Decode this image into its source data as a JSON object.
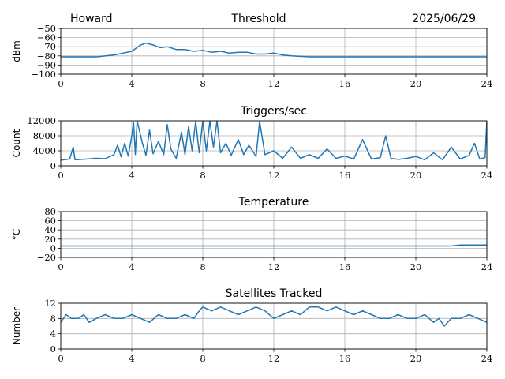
{
  "header": {
    "left": "Howard",
    "center": "Threshold",
    "right": "2025/06/29"
  },
  "colors": {
    "series": "#1f77b4",
    "grid": "#b0b0b0"
  },
  "chart_data": [
    {
      "type": "line",
      "title": "Threshold",
      "ylabel": "dBm",
      "xlim": [
        0,
        24
      ],
      "ylim": [
        -100,
        -50
      ],
      "xticks": [
        0,
        4,
        8,
        12,
        16,
        20,
        24
      ],
      "yticks": [
        -100,
        -90,
        -80,
        -70,
        -60,
        -50
      ],
      "ytick_labels": [
        "−100",
        "−90",
        "−80",
        "−70",
        "−60",
        "−50"
      ],
      "grid": true,
      "x": [
        0,
        1,
        2,
        3,
        3.5,
        4,
        4.5,
        4.8,
        5.2,
        5.6,
        6,
        6.5,
        7,
        7.5,
        8,
        8.5,
        9,
        9.5,
        10,
        10.5,
        11,
        11.5,
        12,
        12.5,
        13,
        14,
        16,
        18,
        20,
        22,
        24
      ],
      "series": [
        {
          "values": [
            -81,
            -81,
            -81,
            -79,
            -77,
            -75,
            -68,
            -66,
            -68,
            -71,
            -70,
            -73,
            -73,
            -75,
            -74,
            -76,
            -75,
            -77,
            -76,
            -76,
            -78,
            -78,
            -77,
            -79,
            -80,
            -81,
            -81,
            -81,
            -81,
            -81,
            -81
          ]
        }
      ]
    },
    {
      "type": "line",
      "title": "Triggers/sec",
      "ylabel": "Count",
      "xlim": [
        0,
        24
      ],
      "ylim": [
        0,
        12000
      ],
      "xticks": [
        0,
        4,
        8,
        12,
        16,
        20,
        24
      ],
      "yticks": [
        0,
        4000,
        8000,
        12000
      ],
      "ytick_labels": [
        "0",
        "4000",
        "8000",
        "12000"
      ],
      "grid": true,
      "x": [
        0,
        0.5,
        0.7,
        0.8,
        1.5,
        2,
        2.5,
        3,
        3.2,
        3.4,
        3.6,
        3.8,
        4,
        4.1,
        4.2,
        4.3,
        4.6,
        4.8,
        5,
        5.2,
        5.5,
        5.8,
        6,
        6.2,
        6.5,
        6.8,
        7,
        7.2,
        7.4,
        7.6,
        7.8,
        8,
        8.2,
        8.4,
        8.6,
        8.8,
        9,
        9.3,
        9.6,
        10,
        10.3,
        10.6,
        11,
        11.2,
        11.5,
        12,
        12.5,
        13,
        13.5,
        14,
        14.5,
        15,
        15.5,
        16,
        16.5,
        17,
        17.5,
        18,
        18.3,
        18.6,
        19,
        19.5,
        20,
        20.5,
        21,
        21.5,
        22,
        22.5,
        23,
        23.3,
        23.6,
        23.9,
        24
      ],
      "series": [
        {
          "values": [
            1500,
            1800,
            5000,
            1600,
            1800,
            2000,
            1900,
            3000,
            5500,
            2400,
            6000,
            2600,
            8000,
            11500,
            3000,
            12000,
            6000,
            2800,
            9500,
            3200,
            6500,
            3000,
            11000,
            4500,
            2000,
            9000,
            3000,
            10500,
            4000,
            11800,
            3500,
            12000,
            4000,
            11900,
            5000,
            12000,
            3500,
            6000,
            2800,
            7000,
            3000,
            5500,
            2500,
            11800,
            3000,
            4000,
            2000,
            5000,
            2000,
            3000,
            2000,
            4500,
            2000,
            2600,
            1800,
            7000,
            1800,
            2200,
            8000,
            2000,
            1700,
            2000,
            2500,
            1600,
            3500,
            1600,
            5000,
            1800,
            2800,
            6000,
            1800,
            2200,
            12000
          ]
        }
      ]
    },
    {
      "type": "line",
      "title": "Temperature",
      "ylabel": "°C",
      "xlim": [
        0,
        24
      ],
      "ylim": [
        -20,
        80
      ],
      "xticks": [
        0,
        4,
        8,
        12,
        16,
        20,
        24
      ],
      "yticks": [
        -20,
        0,
        20,
        40,
        60,
        80
      ],
      "ytick_labels": [
        "−20",
        "0",
        "20",
        "40",
        "60",
        "80"
      ],
      "grid": true,
      "x": [
        0,
        6,
        12,
        18,
        22,
        22.5,
        24
      ],
      "series": [
        {
          "values": [
            5,
            5,
            5,
            5,
            5,
            7,
            7
          ]
        }
      ]
    },
    {
      "type": "line",
      "title": "Satellites Tracked",
      "ylabel": "Number",
      "xlim": [
        0,
        24
      ],
      "ylim": [
        0,
        12
      ],
      "xticks": [
        0,
        4,
        8,
        12,
        16,
        20,
        24
      ],
      "yticks": [
        0,
        4,
        8,
        12
      ],
      "ytick_labels": [
        "0",
        "4",
        "8",
        "12"
      ],
      "grid": true,
      "x": [
        0,
        0.3,
        0.6,
        1,
        1.3,
        1.6,
        2,
        2.5,
        3,
        3.5,
        4,
        4.5,
        5,
        5.5,
        6,
        6.5,
        7,
        7.5,
        7.8,
        8,
        8.5,
        9,
        9.5,
        10,
        10.5,
        11,
        11.5,
        12,
        12.5,
        13,
        13.5,
        14,
        14.5,
        15,
        15.5,
        16,
        16.5,
        17,
        17.5,
        18,
        18.5,
        19,
        19.5,
        20,
        20.5,
        21,
        21.3,
        21.6,
        22,
        22.5,
        23,
        23.5,
        24
      ],
      "series": [
        {
          "values": [
            7,
            9,
            8,
            8,
            9,
            7,
            8,
            9,
            8,
            8,
            9,
            8,
            7,
            9,
            8,
            8,
            9,
            8,
            10,
            11,
            10,
            11,
            10,
            9,
            10,
            11,
            10,
            8,
            9,
            10,
            9,
            11,
            11,
            10,
            11,
            10,
            9,
            10,
            9,
            8,
            8,
            9,
            8,
            8,
            9,
            7,
            8,
            6,
            8,
            8,
            9,
            8,
            7
          ]
        }
      ]
    }
  ]
}
